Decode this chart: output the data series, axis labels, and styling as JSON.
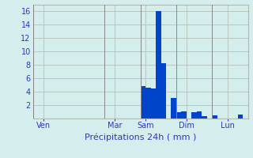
{
  "xlabel": "Précipitations 24h ( mm )",
  "background_color": "#d4eeee",
  "bar_color": "#0044cc",
  "grid_color": "#b0b8b0",
  "ylim": [
    0,
    17
  ],
  "yticks": [
    0,
    2,
    4,
    6,
    8,
    10,
    12,
    14,
    16
  ],
  "tick_color": "#3333bb",
  "label_color": "#3333bb",
  "day_labels": [
    "Ven",
    "Mar",
    "Sam",
    "Dim",
    "Lun"
  ],
  "day_positions": [
    2,
    16,
    22,
    30,
    38
  ],
  "n_bars": 42,
  "bar_values": [
    0,
    0,
    0,
    0,
    0,
    0,
    0,
    0,
    0,
    0,
    0,
    0,
    0,
    0,
    0,
    0,
    0,
    0,
    0,
    0,
    0,
    4.8,
    4.6,
    4.5,
    16.0,
    8.3,
    0,
    3.1,
    1.0,
    1.1,
    0,
    1.0,
    1.1,
    0.4,
    0,
    0.5,
    0,
    0,
    0,
    0,
    0.6,
    0
  ]
}
